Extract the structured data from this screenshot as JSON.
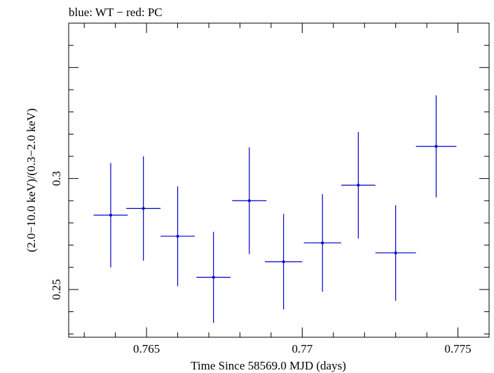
{
  "chart_data": {
    "type": "scatter",
    "title": "blue: WT − red: PC",
    "xlabel": "Time Since 58569.0 MJD (days)",
    "ylabel": "(2.0−10.0 keV)/(0.3−2.0 keV)",
    "xlim": [
      0.7625,
      0.776
    ],
    "ylim": [
      0.2285,
      0.37
    ],
    "x_ticks": [
      0.765,
      0.77,
      0.775
    ],
    "x_tick_labels": [
      "0.765",
      "0.77",
      "0.775"
    ],
    "y_ticks": [
      0.25,
      0.3
    ],
    "y_tick_labels": [
      "0.25",
      "0.3"
    ],
    "color": "#0000cc",
    "series": [
      {
        "points": [
          {
            "x": 0.76385,
            "xerr": 0.00055,
            "y": 0.2835,
            "yerr": 0.0235
          },
          {
            "x": 0.7649,
            "xerr": 0.00055,
            "y": 0.2865,
            "yerr": 0.0235
          },
          {
            "x": 0.766,
            "xerr": 0.00055,
            "y": 0.274,
            "yerr": 0.0225
          },
          {
            "x": 0.76715,
            "xerr": 0.00055,
            "y": 0.2555,
            "yerr": 0.0205
          },
          {
            "x": 0.7683,
            "xerr": 0.00055,
            "y": 0.29,
            "yerr": 0.024
          },
          {
            "x": 0.7694,
            "xerr": 0.0006,
            "y": 0.2625,
            "yerr": 0.0215
          },
          {
            "x": 0.77065,
            "xerr": 0.0006,
            "y": 0.271,
            "yerr": 0.022
          },
          {
            "x": 0.7718,
            "xerr": 0.00055,
            "y": 0.297,
            "yerr": 0.024
          },
          {
            "x": 0.773,
            "xerr": 0.00065,
            "y": 0.2665,
            "yerr": 0.0215
          },
          {
            "x": 0.7743,
            "xerr": 0.00065,
            "y": 0.3145,
            "yerr": 0.023
          }
        ]
      }
    ]
  }
}
